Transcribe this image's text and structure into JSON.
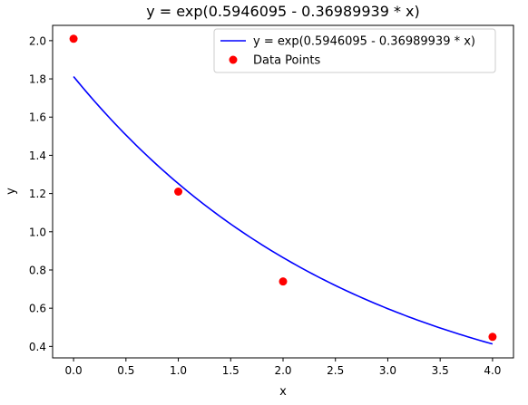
{
  "chart_data": {
    "type": "line",
    "title": "y = exp(0.5946095 - 0.36989939 * x)",
    "xlabel": "x",
    "ylabel": "y",
    "xlim": [
      -0.2,
      4.2
    ],
    "ylim": [
      0.34,
      2.08
    ],
    "xticks": [
      0.0,
      0.5,
      1.0,
      1.5,
      2.0,
      2.5,
      3.0,
      3.5,
      4.0
    ],
    "xtick_labels": [
      "0.0",
      "0.5",
      "1.0",
      "1.5",
      "2.0",
      "2.5",
      "3.0",
      "3.5",
      "4.0"
    ],
    "yticks": [
      0.4,
      0.6,
      0.8,
      1.0,
      1.2,
      1.4,
      1.6,
      1.8,
      2.0
    ],
    "ytick_labels": [
      "0.4",
      "0.6",
      "0.8",
      "1.0",
      "1.2",
      "1.4",
      "1.6",
      "1.8",
      "2.0"
    ],
    "grid": false,
    "legend_position": "top-right",
    "series": [
      {
        "name": "y = exp(0.5946095 - 0.36989939 * x)",
        "kind": "line",
        "color": "#0000ff",
        "model": {
          "a": 0.5946095,
          "b": -0.36989939,
          "x_min": 0.0,
          "x_max": 4.0
        }
      },
      {
        "name": "Data Points",
        "kind": "scatter",
        "color": "#ff0000",
        "x": [
          0,
          1,
          2,
          4
        ],
        "y": [
          2.01,
          1.21,
          0.74,
          0.45
        ]
      }
    ]
  }
}
